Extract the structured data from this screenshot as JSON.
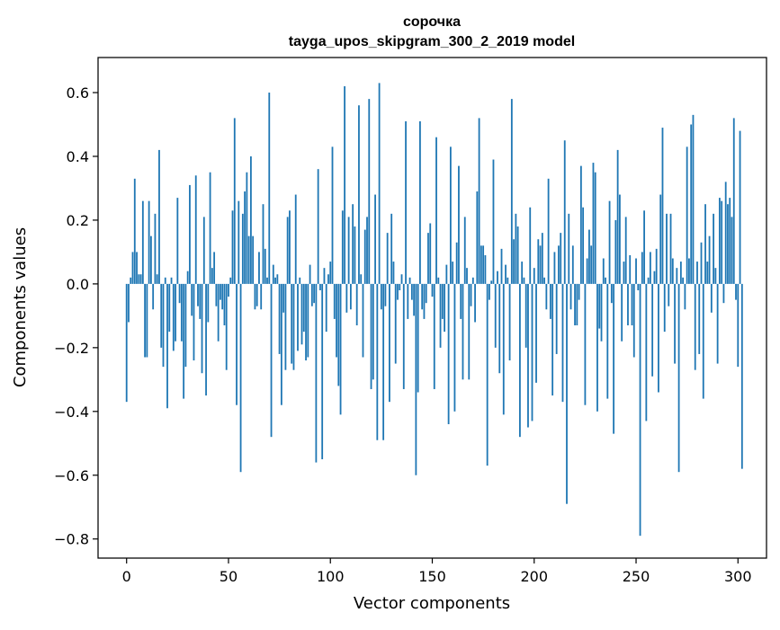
{
  "chart_data": {
    "type": "bar",
    "title_line1": "сорочка",
    "title_line2": "tayga_upos_skipgram_300_2_2019 model",
    "xlabel": "Vector components",
    "ylabel": "Components values",
    "xlim": [
      -14,
      314
    ],
    "ylim": [
      -0.86,
      0.71
    ],
    "x_ticks": [
      0,
      50,
      100,
      150,
      200,
      250,
      300
    ],
    "x_tick_labels": [
      "0",
      "50",
      "100",
      "150",
      "200",
      "250",
      "300"
    ],
    "y_ticks": [
      -0.8,
      -0.6,
      -0.4,
      -0.2,
      0.0,
      0.2,
      0.4,
      0.6
    ],
    "y_tick_labels": [
      "−0.8",
      "−0.6",
      "−0.4",
      "−0.2",
      "0.0",
      "0.2",
      "0.4",
      "0.6"
    ],
    "bar_color": "#1f77b4",
    "grid": false,
    "legend": "none",
    "values": [
      -0.37,
      -0.12,
      0.02,
      0.1,
      0.33,
      0.1,
      0.03,
      0.03,
      0.26,
      -0.23,
      -0.23,
      0.26,
      0.15,
      -0.08,
      0.22,
      0.03,
      0.42,
      -0.2,
      -0.26,
      0.02,
      -0.39,
      -0.15,
      0.02,
      -0.21,
      -0.18,
      0.27,
      -0.06,
      -0.18,
      -0.36,
      -0.26,
      0.04,
      0.31,
      -0.1,
      -0.24,
      0.34,
      -0.07,
      -0.11,
      -0.28,
      0.21,
      -0.35,
      -0.12,
      0.35,
      0.05,
      0.1,
      -0.07,
      -0.18,
      -0.05,
      -0.08,
      -0.13,
      -0.27,
      -0.04,
      0.02,
      0.23,
      0.52,
      -0.38,
      0.26,
      -0.59,
      0.22,
      0.29,
      0.35,
      0.15,
      0.4,
      0.15,
      -0.08,
      -0.07,
      0.1,
      -0.08,
      0.25,
      0.11,
      0.02,
      0.6,
      -0.48,
      0.06,
      0.02,
      0.03,
      -0.22,
      -0.38,
      -0.09,
      -0.27,
      0.21,
      0.23,
      -0.25,
      -0.27,
      0.28,
      -0.21,
      0.02,
      -0.19,
      -0.15,
      -0.24,
      -0.23,
      0.06,
      -0.07,
      -0.06,
      -0.56,
      0.36,
      -0.02,
      -0.55,
      0.05,
      -0.15,
      0.03,
      0.07,
      0.43,
      -0.11,
      -0.23,
      -0.32,
      -0.41,
      0.23,
      0.62,
      -0.09,
      0.21,
      -0.08,
      0.25,
      0.18,
      -0.13,
      0.56,
      0.03,
      -0.23,
      0.17,
      0.21,
      0.58,
      -0.33,
      -0.3,
      0.28,
      -0.49,
      0.63,
      -0.08,
      -0.49,
      -0.07,
      0.16,
      -0.37,
      0.22,
      0.07,
      -0.25,
      -0.05,
      -0.02,
      0.03,
      -0.33,
      0.51,
      -0.11,
      0.02,
      -0.05,
      -0.1,
      -0.6,
      -0.34,
      0.51,
      -0.08,
      -0.11,
      -0.06,
      0.16,
      0.19,
      -0.04,
      -0.33,
      0.46,
      0.02,
      -0.2,
      -0.11,
      -0.15,
      0.06,
      -0.44,
      0.43,
      0.07,
      -0.4,
      0.13,
      0.37,
      -0.11,
      -0.3,
      0.21,
      0.05,
      -0.3,
      -0.07,
      0.02,
      -0.12,
      0.29,
      0.52,
      0.12,
      0.12,
      0.09,
      -0.57,
      -0.05,
      0.01,
      0.39,
      -0.2,
      0.04,
      -0.28,
      0.11,
      -0.41,
      0.06,
      0.02,
      -0.24,
      0.58,
      0.14,
      0.22,
      0.18,
      -0.48,
      0.07,
      0.02,
      -0.2,
      -0.45,
      0.24,
      -0.43,
      0.05,
      -0.31,
      0.14,
      0.12,
      0.16,
      0.02,
      -0.08,
      0.33,
      -0.11,
      -0.35,
      0.1,
      -0.22,
      0.12,
      0.16,
      -0.37,
      0.45,
      -0.69,
      0.22,
      -0.08,
      0.12,
      -0.13,
      -0.13,
      -0.05,
      0.37,
      0.24,
      -0.38,
      0.08,
      0.17,
      0.12,
      0.38,
      0.35,
      -0.4,
      -0.14,
      -0.18,
      0.08,
      0.02,
      -0.36,
      0.26,
      -0.06,
      -0.47,
      0.2,
      0.42,
      0.28,
      -0.18,
      0.07,
      0.21,
      -0.13,
      0.09,
      -0.13,
      -0.23,
      0.08,
      -0.02,
      -0.79,
      0.1,
      0.23,
      -0.43,
      0.02,
      0.1,
      -0.29,
      0.04,
      0.11,
      -0.34,
      0.28,
      0.49,
      -0.15,
      0.22,
      -0.07,
      0.22,
      0.08,
      -0.25,
      0.05,
      -0.59,
      0.07,
      0.02,
      -0.08,
      0.43,
      0.08,
      0.5,
      0.53,
      -0.27,
      0.07,
      -0.22,
      0.13,
      -0.36,
      0.25,
      0.07,
      0.15,
      -0.09,
      0.22,
      0.05,
      -0.25,
      0.27,
      0.26,
      -0.06,
      0.32,
      0.25,
      0.27,
      0.21,
      0.52,
      -0.05,
      -0.26,
      0.48,
      -0.58
    ]
  }
}
